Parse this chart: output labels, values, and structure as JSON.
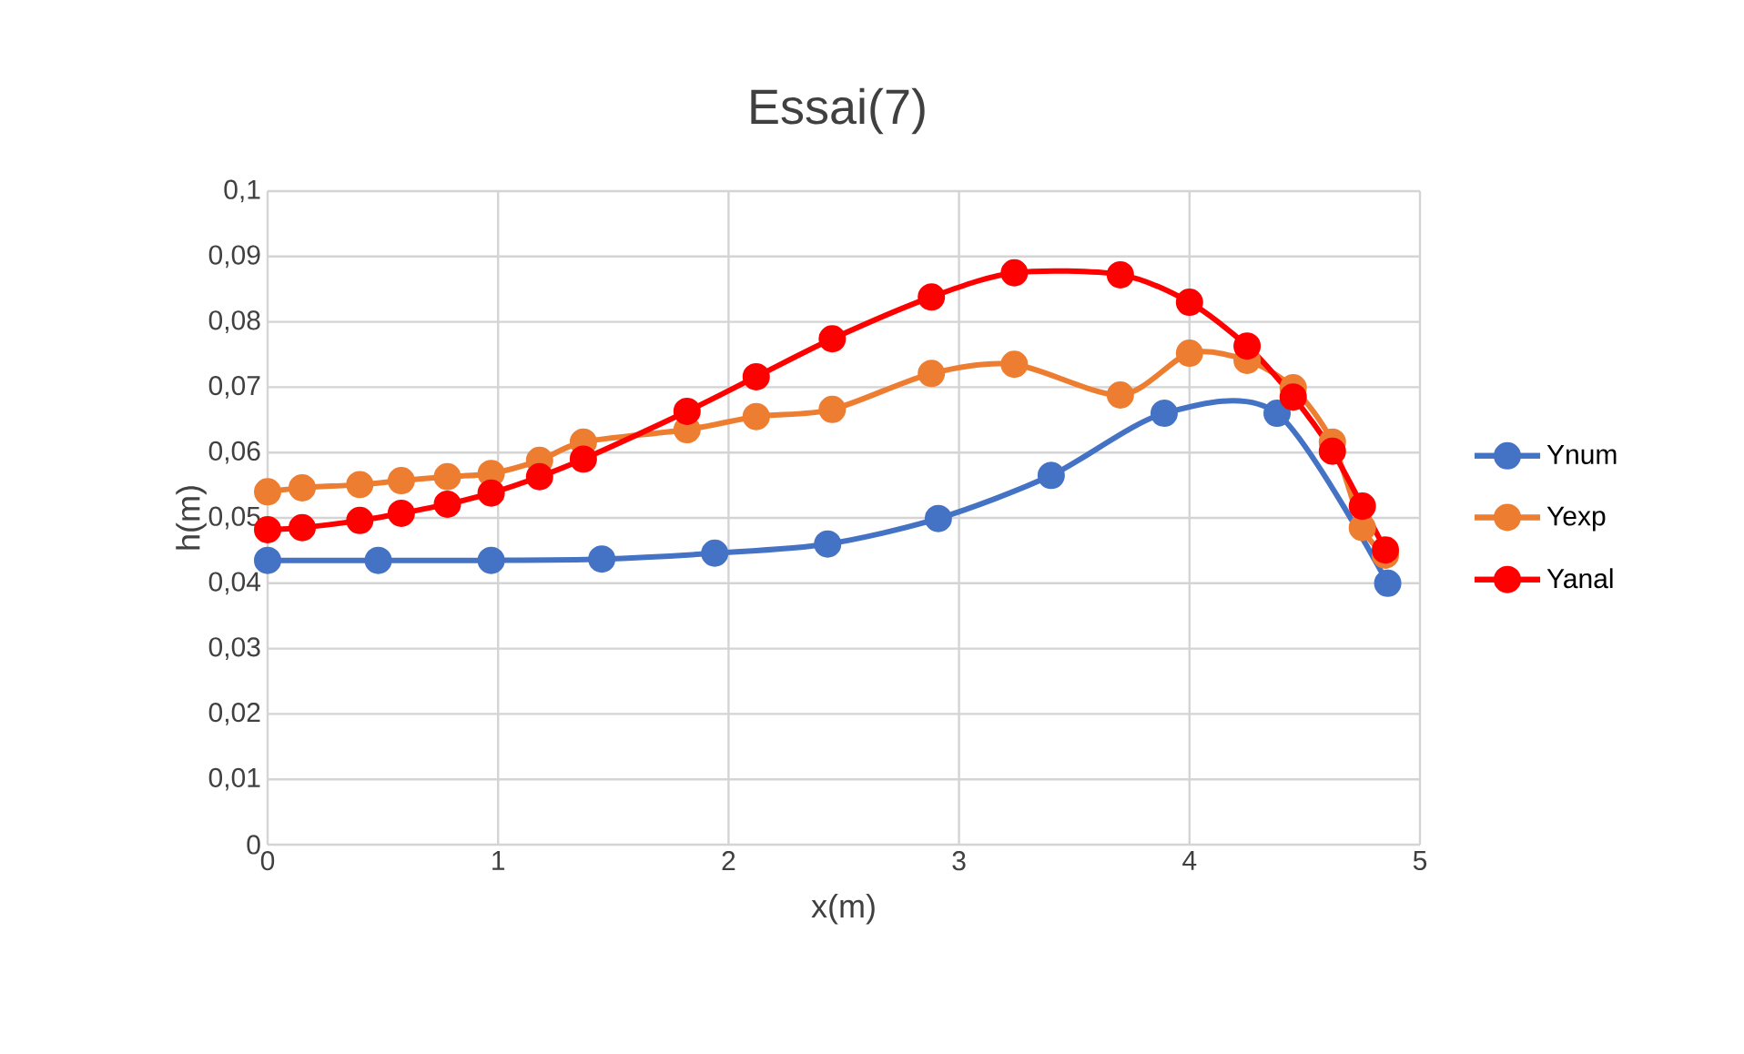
{
  "chart_data": {
    "type": "line",
    "title": "Essai(7)",
    "xlabel": "x(m)",
    "ylabel": "h(m)",
    "xlim": [
      0,
      5
    ],
    "xticks": [
      0,
      1,
      2,
      3,
      4,
      5
    ],
    "ylim": [
      0,
      0.1
    ],
    "yticks": [
      0,
      {
        "value": 0.01,
        "label": "0,01"
      },
      {
        "value": 0.02,
        "label": "0,02"
      },
      {
        "value": 0.03,
        "label": "0,03"
      },
      {
        "value": 0.04,
        "label": "0,04"
      },
      {
        "value": 0.05,
        "label": "0,05"
      },
      {
        "value": 0.06,
        "label": "0,06"
      },
      {
        "value": 0.07,
        "label": "0,07"
      },
      {
        "value": 0.08,
        "label": "0,08"
      },
      {
        "value": 0.09,
        "label": "0,09"
      },
      {
        "value": 0.1,
        "label": "0,1"
      }
    ],
    "grid": true,
    "legend": "right",
    "marker": "circle",
    "line_style": "solid",
    "series": [
      {
        "name": "Ynum",
        "color": "#4472c4",
        "x": [
          0,
          0.48,
          0.97,
          1.45,
          1.94,
          2.43,
          2.91,
          3.4,
          3.89,
          4.38,
          4.86
        ],
        "values": [
          0.0435,
          0.0435,
          0.0435,
          0.0437,
          0.0446,
          0.046,
          0.0499,
          0.0565,
          0.066,
          0.066,
          0.04
        ]
      },
      {
        "name": "Yexp",
        "color": "#ed7d31",
        "x": [
          0,
          0.15,
          0.4,
          0.58,
          0.78,
          0.97,
          1.18,
          1.37,
          1.82,
          2.12,
          2.45,
          2.88,
          3.24,
          3.7,
          4.0,
          4.25,
          4.45,
          4.62,
          4.75,
          4.85
        ],
        "values": [
          0.054,
          0.0546,
          0.0551,
          0.0557,
          0.0563,
          0.0568,
          0.0588,
          0.0616,
          0.0635,
          0.0655,
          0.0666,
          0.0721,
          0.0735,
          0.0688,
          0.0752,
          0.0741,
          0.0699,
          0.0616,
          0.0485,
          0.0443
        ]
      },
      {
        "name": "Yanal",
        "color": "#ff0000",
        "x": [
          0,
          0.15,
          0.4,
          0.58,
          0.78,
          0.97,
          1.18,
          1.37,
          1.82,
          2.12,
          2.45,
          2.88,
          3.24,
          3.7,
          4.0,
          4.25,
          4.45,
          4.62,
          4.75,
          4.85
        ],
        "values": [
          0.0482,
          0.0485,
          0.0496,
          0.0507,
          0.0521,
          0.0538,
          0.0563,
          0.059,
          0.0663,
          0.0716,
          0.0774,
          0.0838,
          0.0875,
          0.0872,
          0.083,
          0.0763,
          0.0685,
          0.0602,
          0.0518,
          0.0451
        ]
      }
    ]
  }
}
